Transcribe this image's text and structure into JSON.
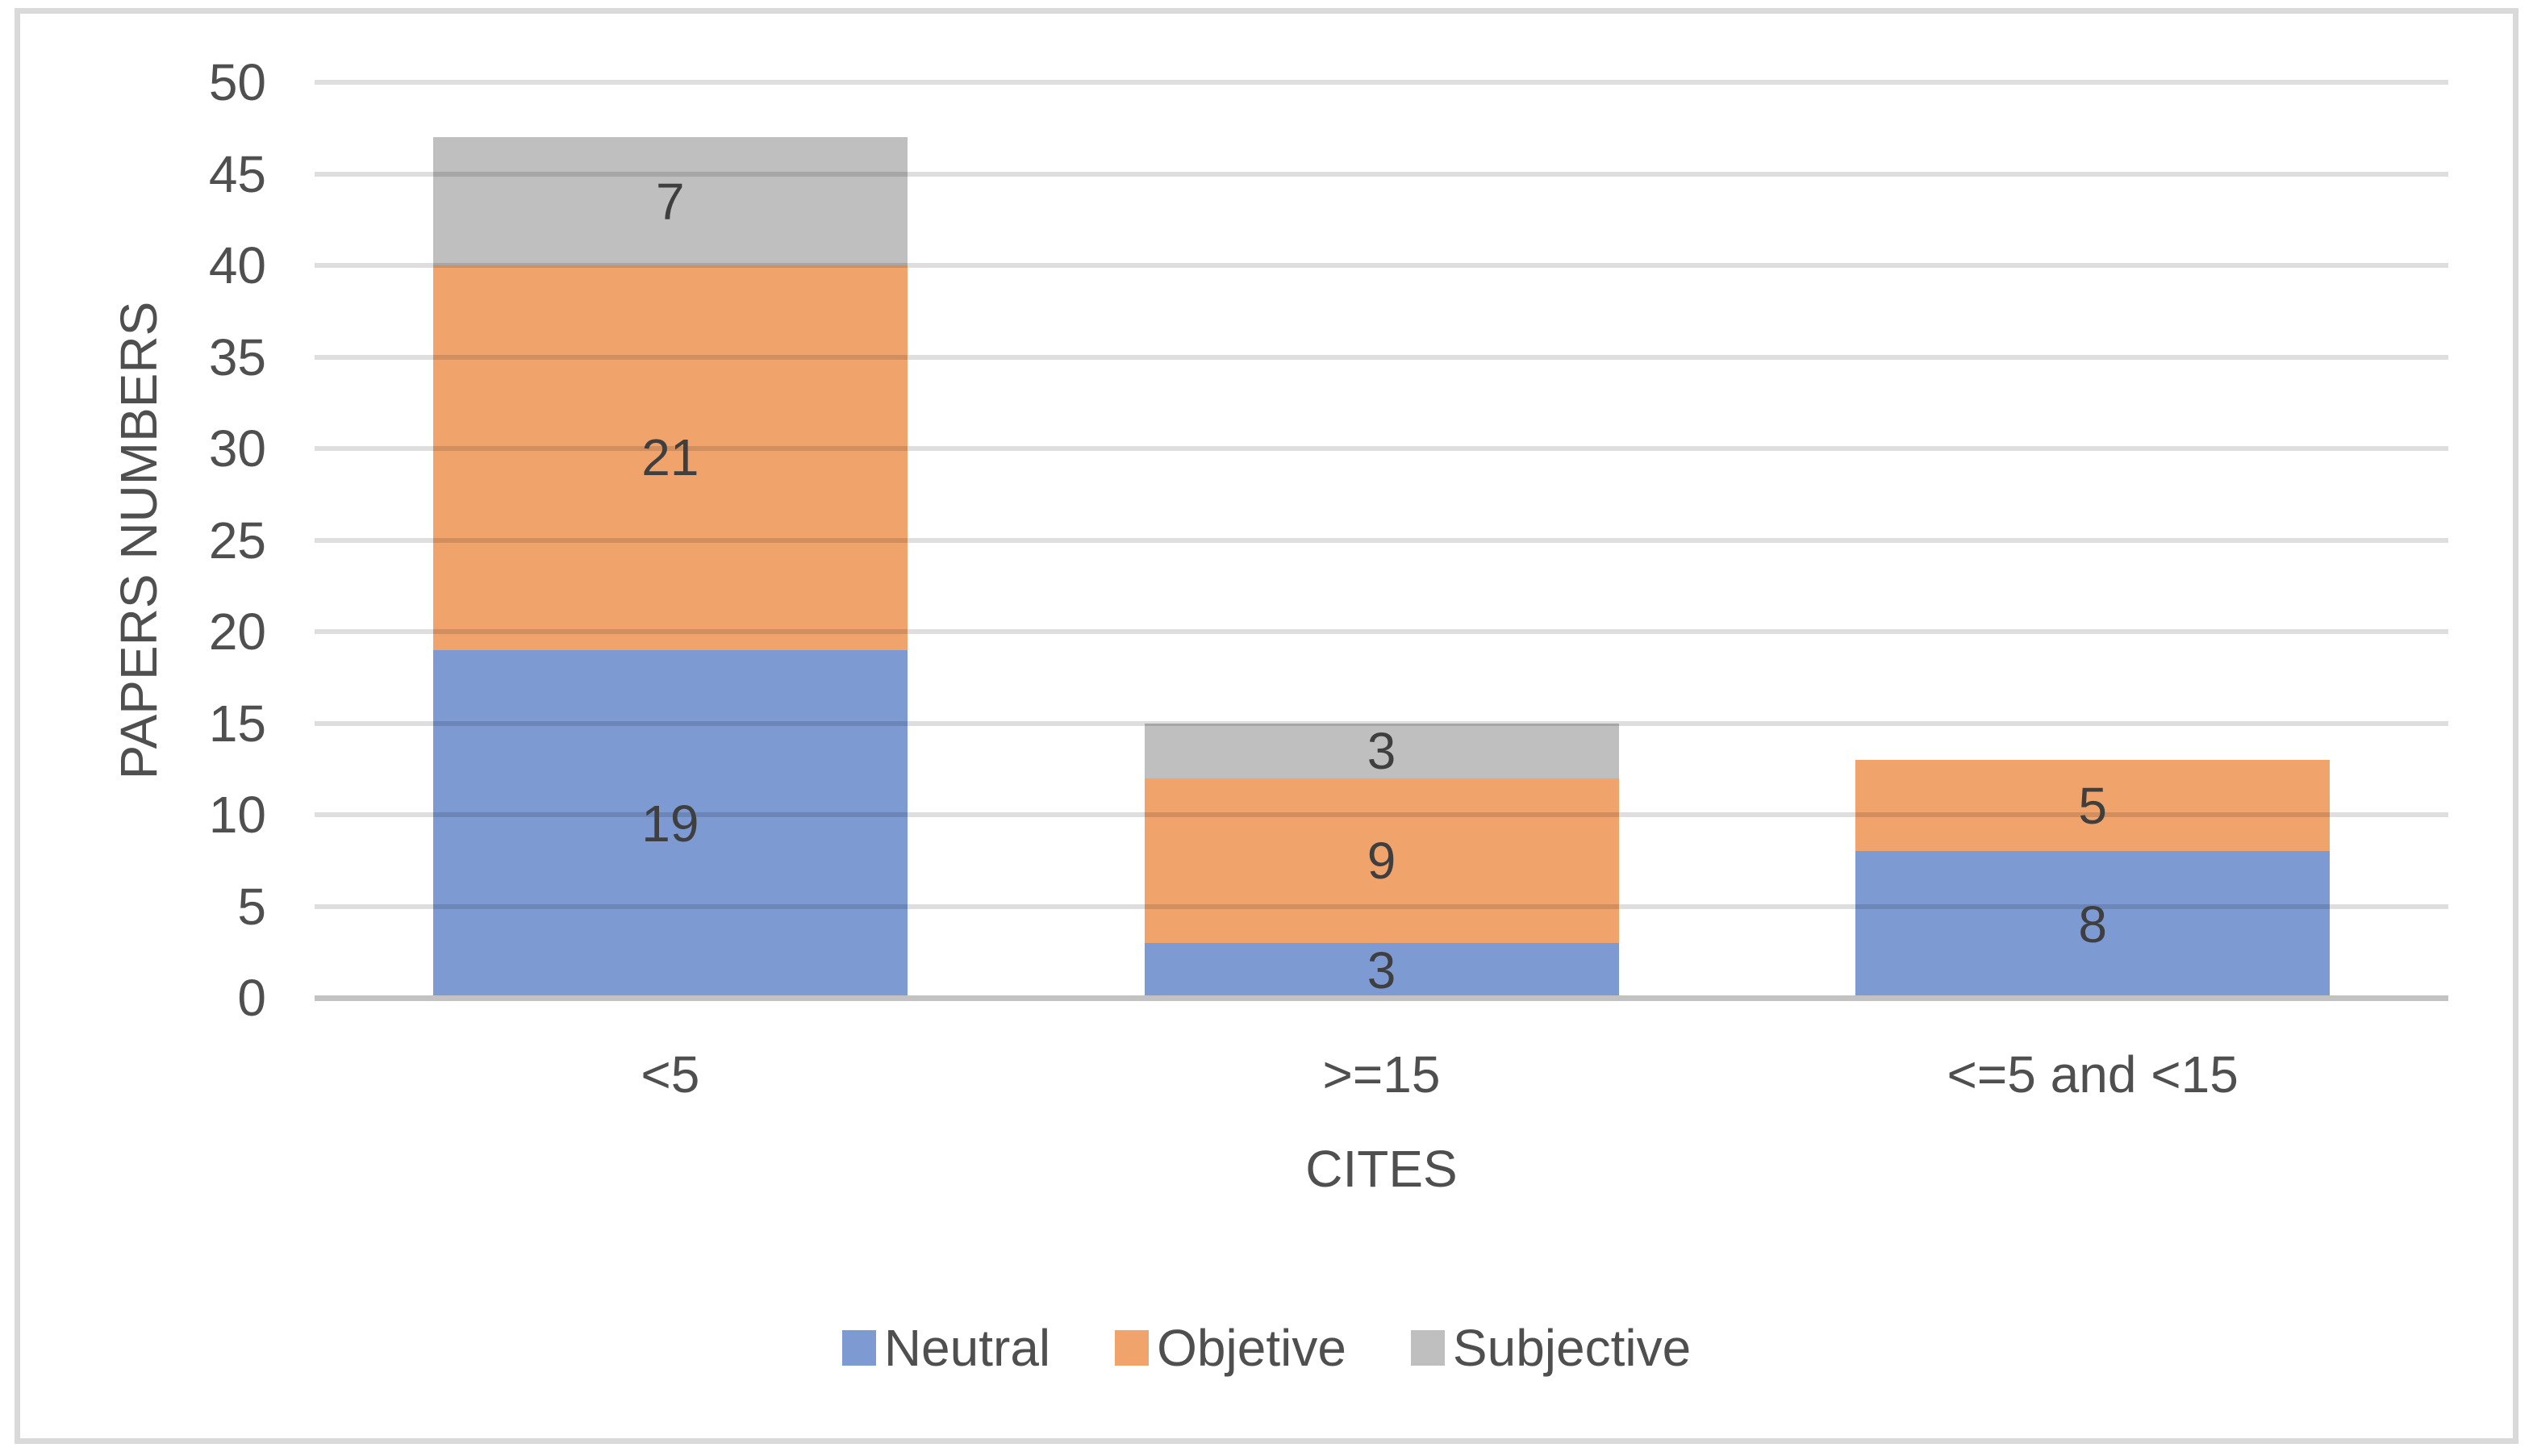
{
  "figure": {
    "background_color": "#FFFFFF",
    "border_color": "#D9D9D9"
  },
  "chart_data": {
    "type": "bar",
    "stacked": true,
    "categories": [
      "<5",
      ">=15",
      "<=5 and <15"
    ],
    "series": [
      {
        "name": "Neutral",
        "color": "#7D9AD3",
        "values": [
          19,
          3,
          8
        ]
      },
      {
        "name": "Objetive",
        "color": "#F0A46C",
        "values": [
          21,
          9,
          5
        ]
      },
      {
        "name": "Subjective",
        "color": "#BFBFBF",
        "values": [
          7,
          3,
          0
        ]
      }
    ],
    "xlabel": "CITES",
    "ylabel": "PAPERS NUMBERS",
    "ylim": [
      0,
      50
    ],
    "ytick_step": 5,
    "yticks": [
      0,
      5,
      10,
      15,
      20,
      25,
      30,
      35,
      40,
      45,
      50
    ],
    "grid": true,
    "data_labels": true,
    "legend_position": "bottom",
    "text_color": "#4F4F4F",
    "data_label_color": "#3F3F3F",
    "gridline_color": "#DEDEDE",
    "baseline_color": "#C2C2C2"
  }
}
